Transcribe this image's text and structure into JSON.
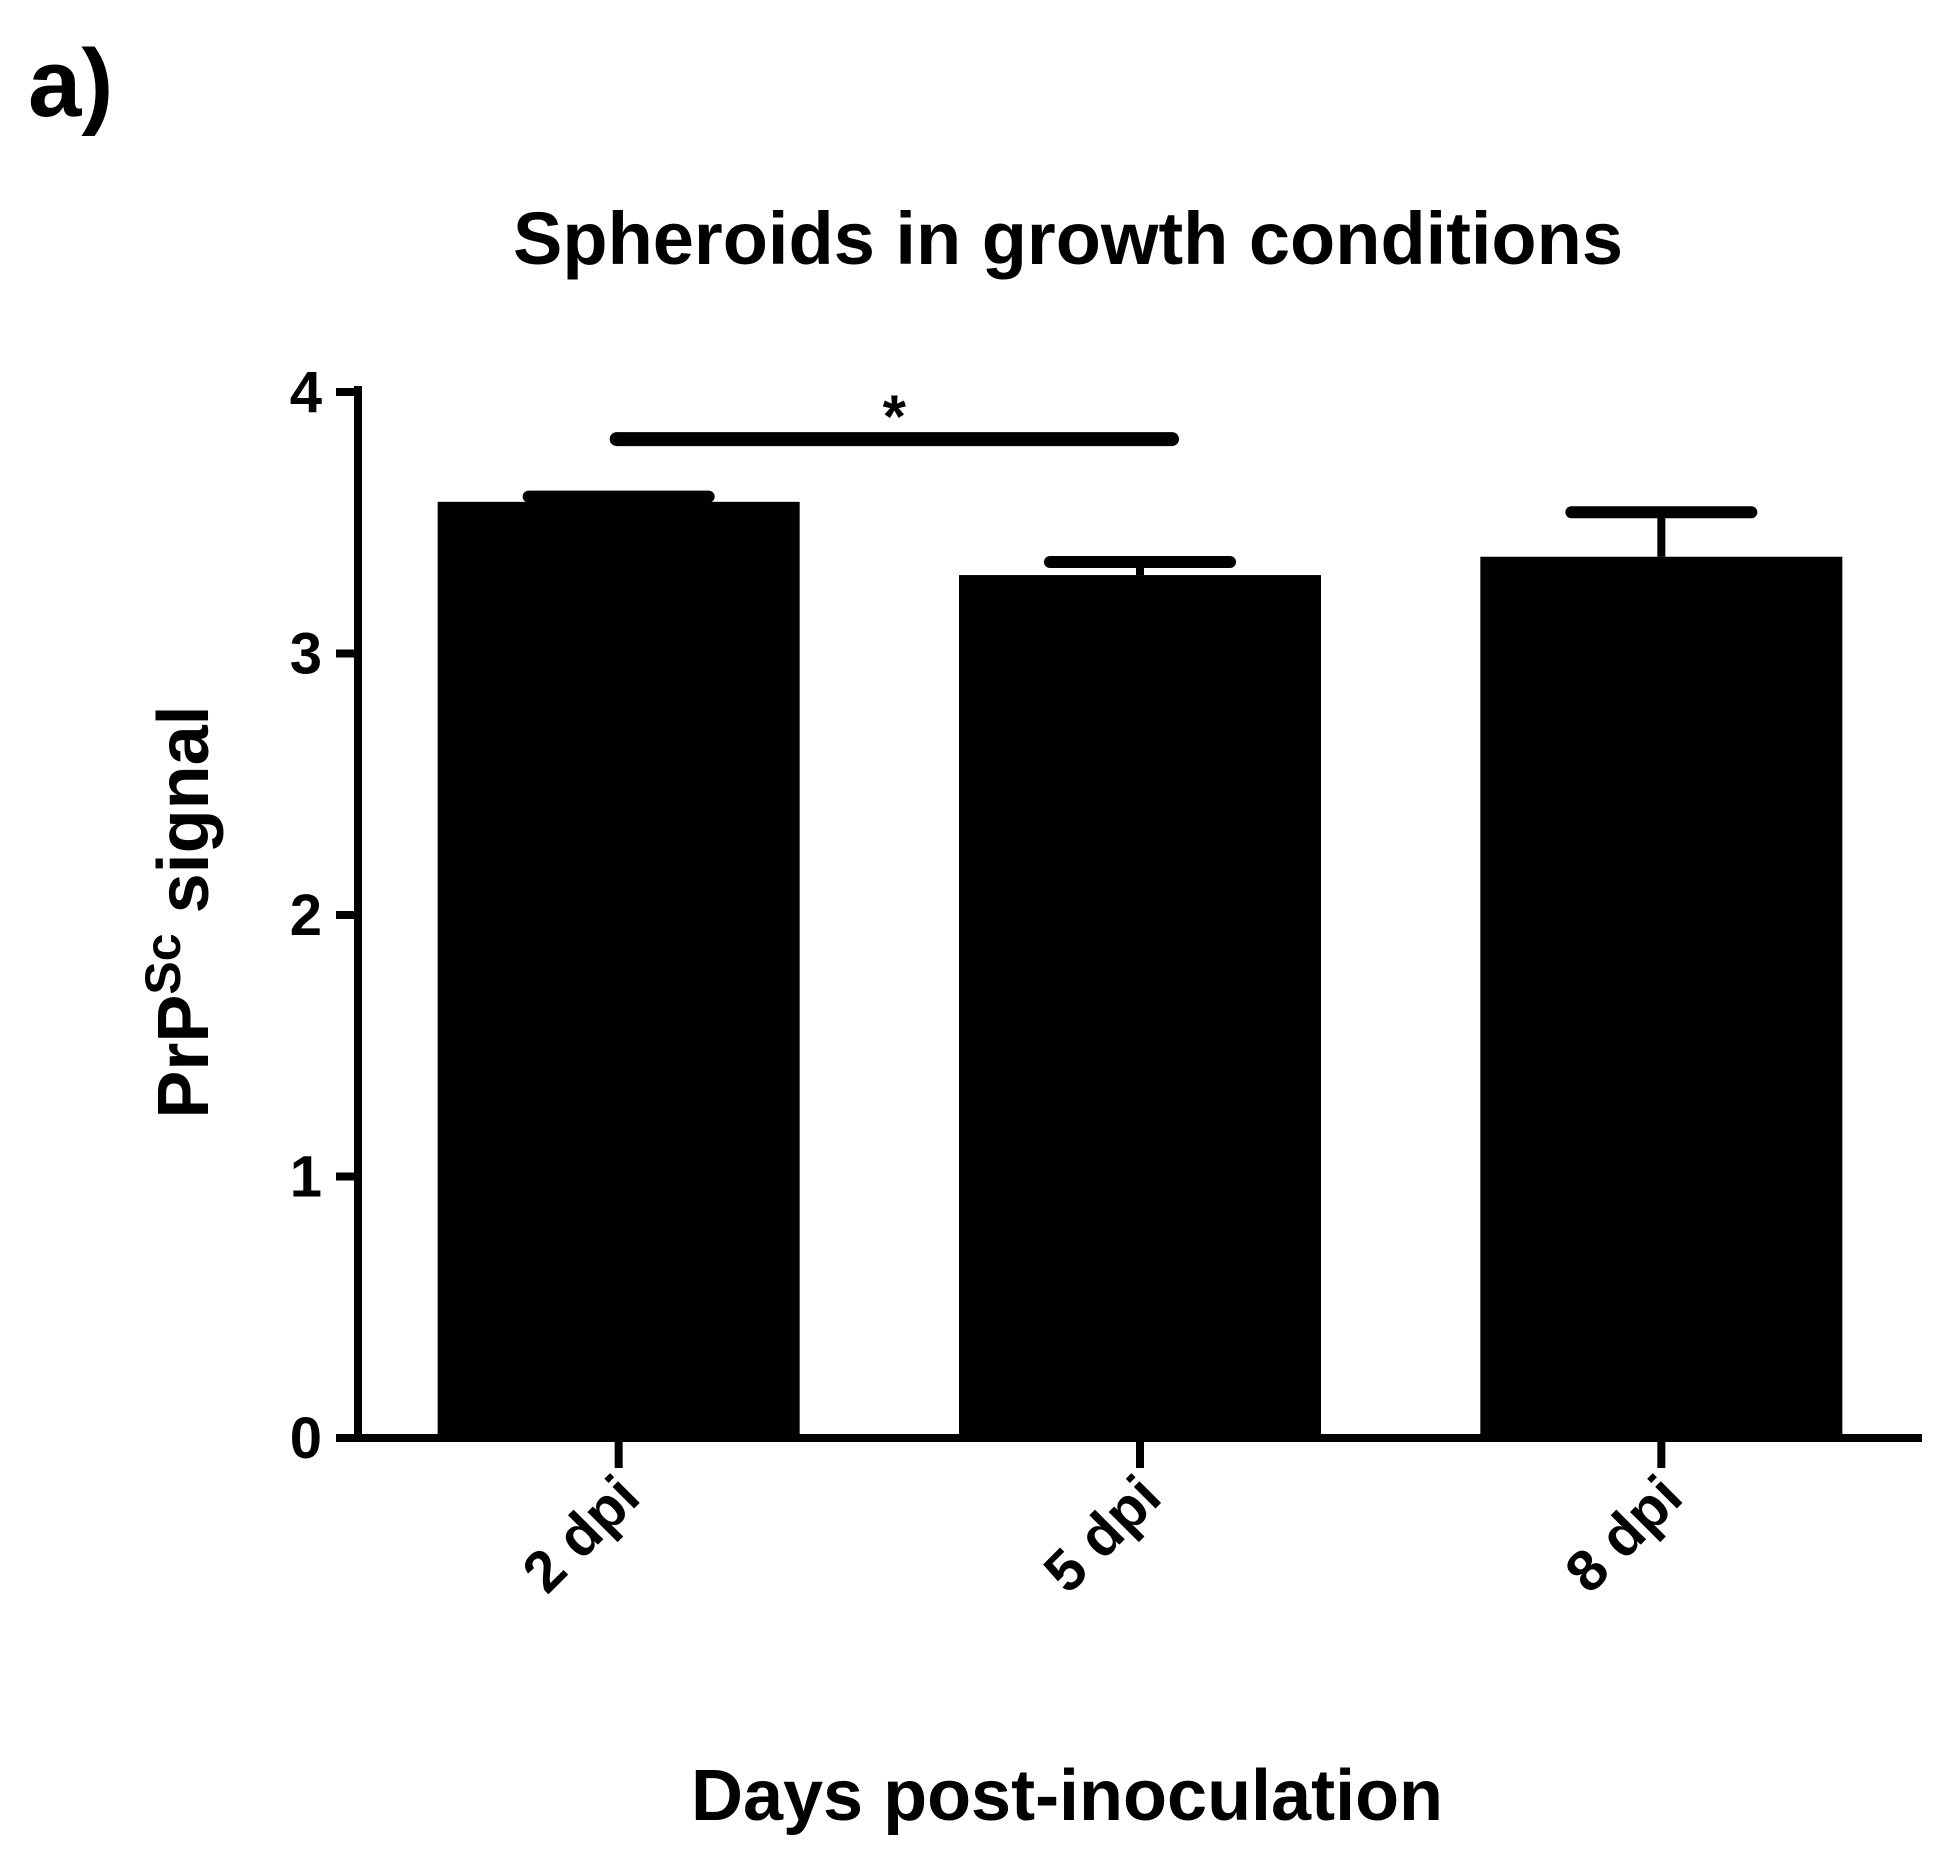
{
  "panel_label": "a)",
  "chart_data": {
    "type": "bar",
    "title": "Spheroids in growth conditions",
    "xlabel": "Days post-inoculation",
    "ylabel": {
      "base": "PrP",
      "superscript": "Sc",
      "suffix": " signal"
    },
    "categories": [
      "2 dpi",
      "5 dpi",
      "8 dpi"
    ],
    "values": [
      3.58,
      3.3,
      3.37
    ],
    "error_upper": [
      0.02,
      0.05,
      0.17
    ],
    "ylim": [
      0,
      4
    ],
    "yticks": [
      "0",
      "1",
      "2",
      "3",
      "4"
    ],
    "grid": false,
    "bar_color": "#000000",
    "significance": [
      {
        "from": "2 dpi",
        "to": "5 dpi",
        "label": "*"
      }
    ]
  }
}
